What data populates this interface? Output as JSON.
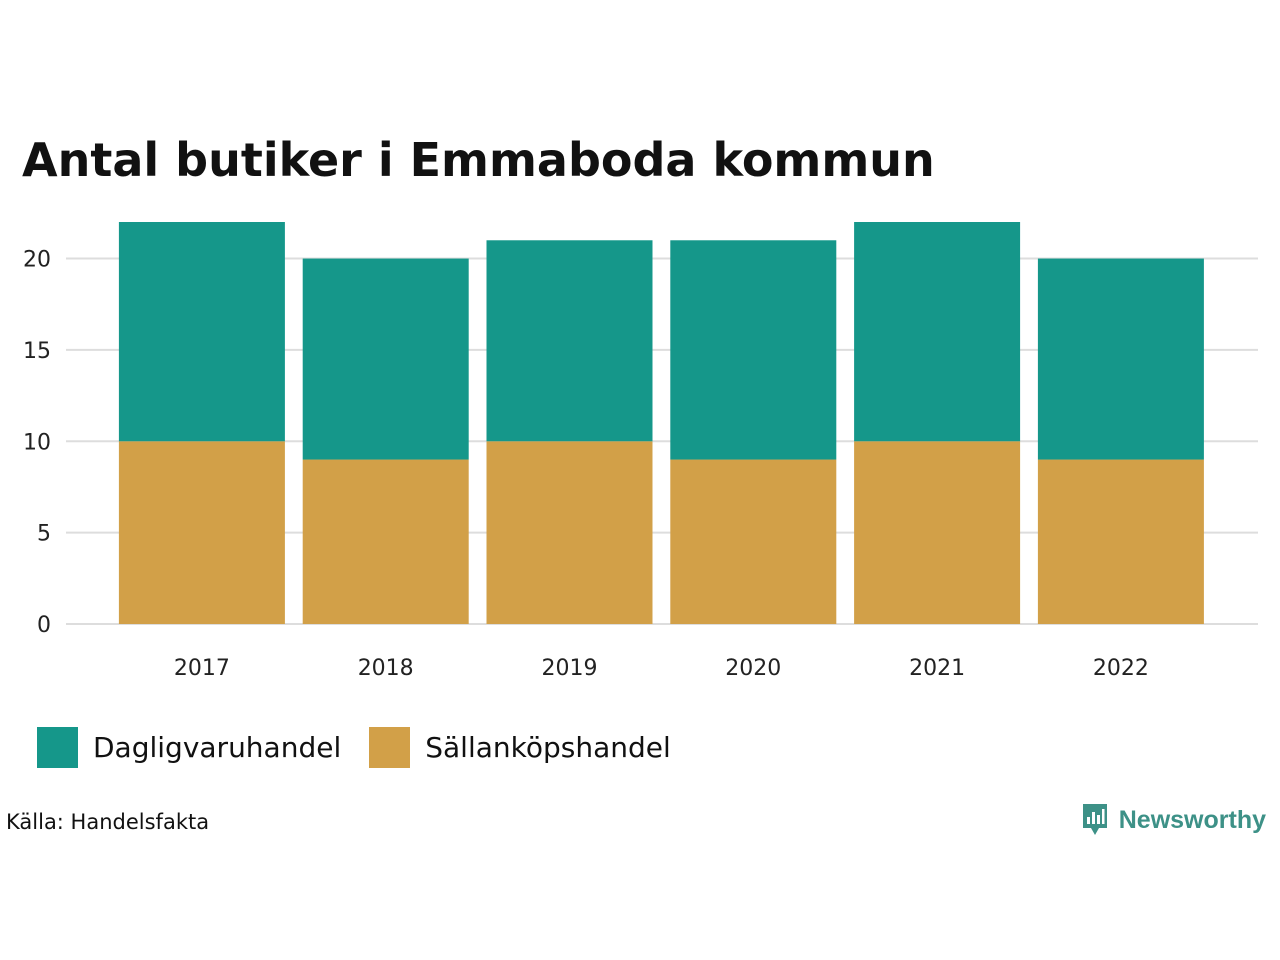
{
  "colors": {
    "dagligvaruhandel": "#15978a",
    "sallankopshandel": "#d2a048",
    "grid": "#dddddd",
    "brand": "#3d9187"
  },
  "chart_data": {
    "type": "bar",
    "stacked": true,
    "title": "Antal butiker i Emmaboda kommun",
    "xlabel": "",
    "ylabel": "",
    "categories": [
      "2017",
      "2018",
      "2019",
      "2020",
      "2021",
      "2022"
    ],
    "series": [
      {
        "name": "Sällanköpshandel",
        "color_key": "sallankopshandel",
        "values": [
          10,
          9,
          10,
          9,
          10,
          9
        ]
      },
      {
        "name": "Dagligvaruhandel",
        "color_key": "dagligvaruhandel",
        "values": [
          12,
          11,
          11,
          12,
          12,
          11
        ]
      }
    ],
    "ylim": [
      0,
      22
    ],
    "yticks": [
      0,
      5,
      10,
      15,
      20
    ],
    "grid": true,
    "legend_position": "bottom-left"
  },
  "legend": {
    "items": [
      {
        "label": "Dagligvaruhandel",
        "color_key": "dagligvaruhandel"
      },
      {
        "label": "Sällanköpshandel",
        "color_key": "sallankopshandel"
      }
    ]
  },
  "footer": {
    "source": "Källa: Handelsfakta",
    "brand": "Newsworthy",
    "brand_icon": "newsworthy-logo-icon"
  }
}
